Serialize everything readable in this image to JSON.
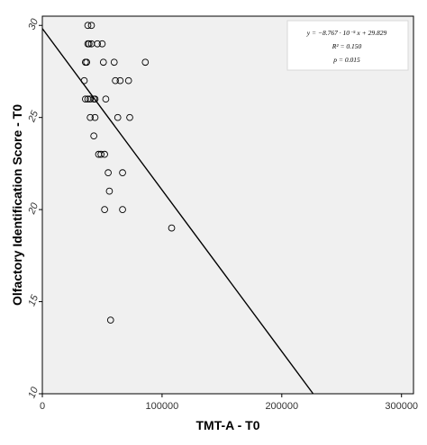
{
  "chart_data": {
    "type": "scatter",
    "xlabel": "TMT-A - T0",
    "ylabel": "Olfactory Identification Score - T0",
    "xlim": [
      0,
      310000
    ],
    "ylim": [
      10,
      30.5
    ],
    "xticks": [
      0,
      100000,
      200000,
      300000
    ],
    "xtick_labels": [
      "0",
      "100000",
      "200000",
      "300000"
    ],
    "yticks": [
      10,
      15,
      20,
      25,
      30
    ],
    "ytick_labels": [
      "10",
      "15",
      "20",
      "25",
      "30"
    ],
    "grid": false,
    "background": "#f0f0f0",
    "marker": "open-circle",
    "series": [
      {
        "points": [
          [
            38000,
            30
          ],
          [
            41000,
            30
          ],
          [
            38000,
            29
          ],
          [
            39000,
            29
          ],
          [
            41000,
            29
          ],
          [
            46000,
            29
          ],
          [
            50000,
            29
          ],
          [
            36000,
            28
          ],
          [
            37000,
            28
          ],
          [
            51000,
            28
          ],
          [
            60000,
            28
          ],
          [
            86000,
            28
          ],
          [
            35000,
            27
          ],
          [
            61000,
            27
          ],
          [
            65000,
            27
          ],
          [
            72000,
            27
          ],
          [
            36000,
            26
          ],
          [
            38000,
            26
          ],
          [
            40000,
            26
          ],
          [
            43000,
            26
          ],
          [
            44000,
            26
          ],
          [
            53000,
            26
          ],
          [
            40000,
            25
          ],
          [
            44000,
            25
          ],
          [
            63000,
            25
          ],
          [
            73000,
            25
          ],
          [
            43000,
            24
          ],
          [
            47000,
            23
          ],
          [
            49000,
            23
          ],
          [
            52000,
            23
          ],
          [
            55000,
            22
          ],
          [
            67000,
            22
          ],
          [
            56000,
            21
          ],
          [
            52000,
            20
          ],
          [
            67000,
            20
          ],
          [
            108000,
            19
          ],
          [
            57000,
            14
          ]
        ]
      }
    ],
    "regression": {
      "slope": -8.767e-05,
      "intercept": 29.829
    },
    "annotation": {
      "equation": "y = −8.767 · 10⁻⁵ x + 29.829",
      "r2": "R² = 0.150",
      "p": "p = 0.015",
      "placement": "top-right"
    }
  }
}
